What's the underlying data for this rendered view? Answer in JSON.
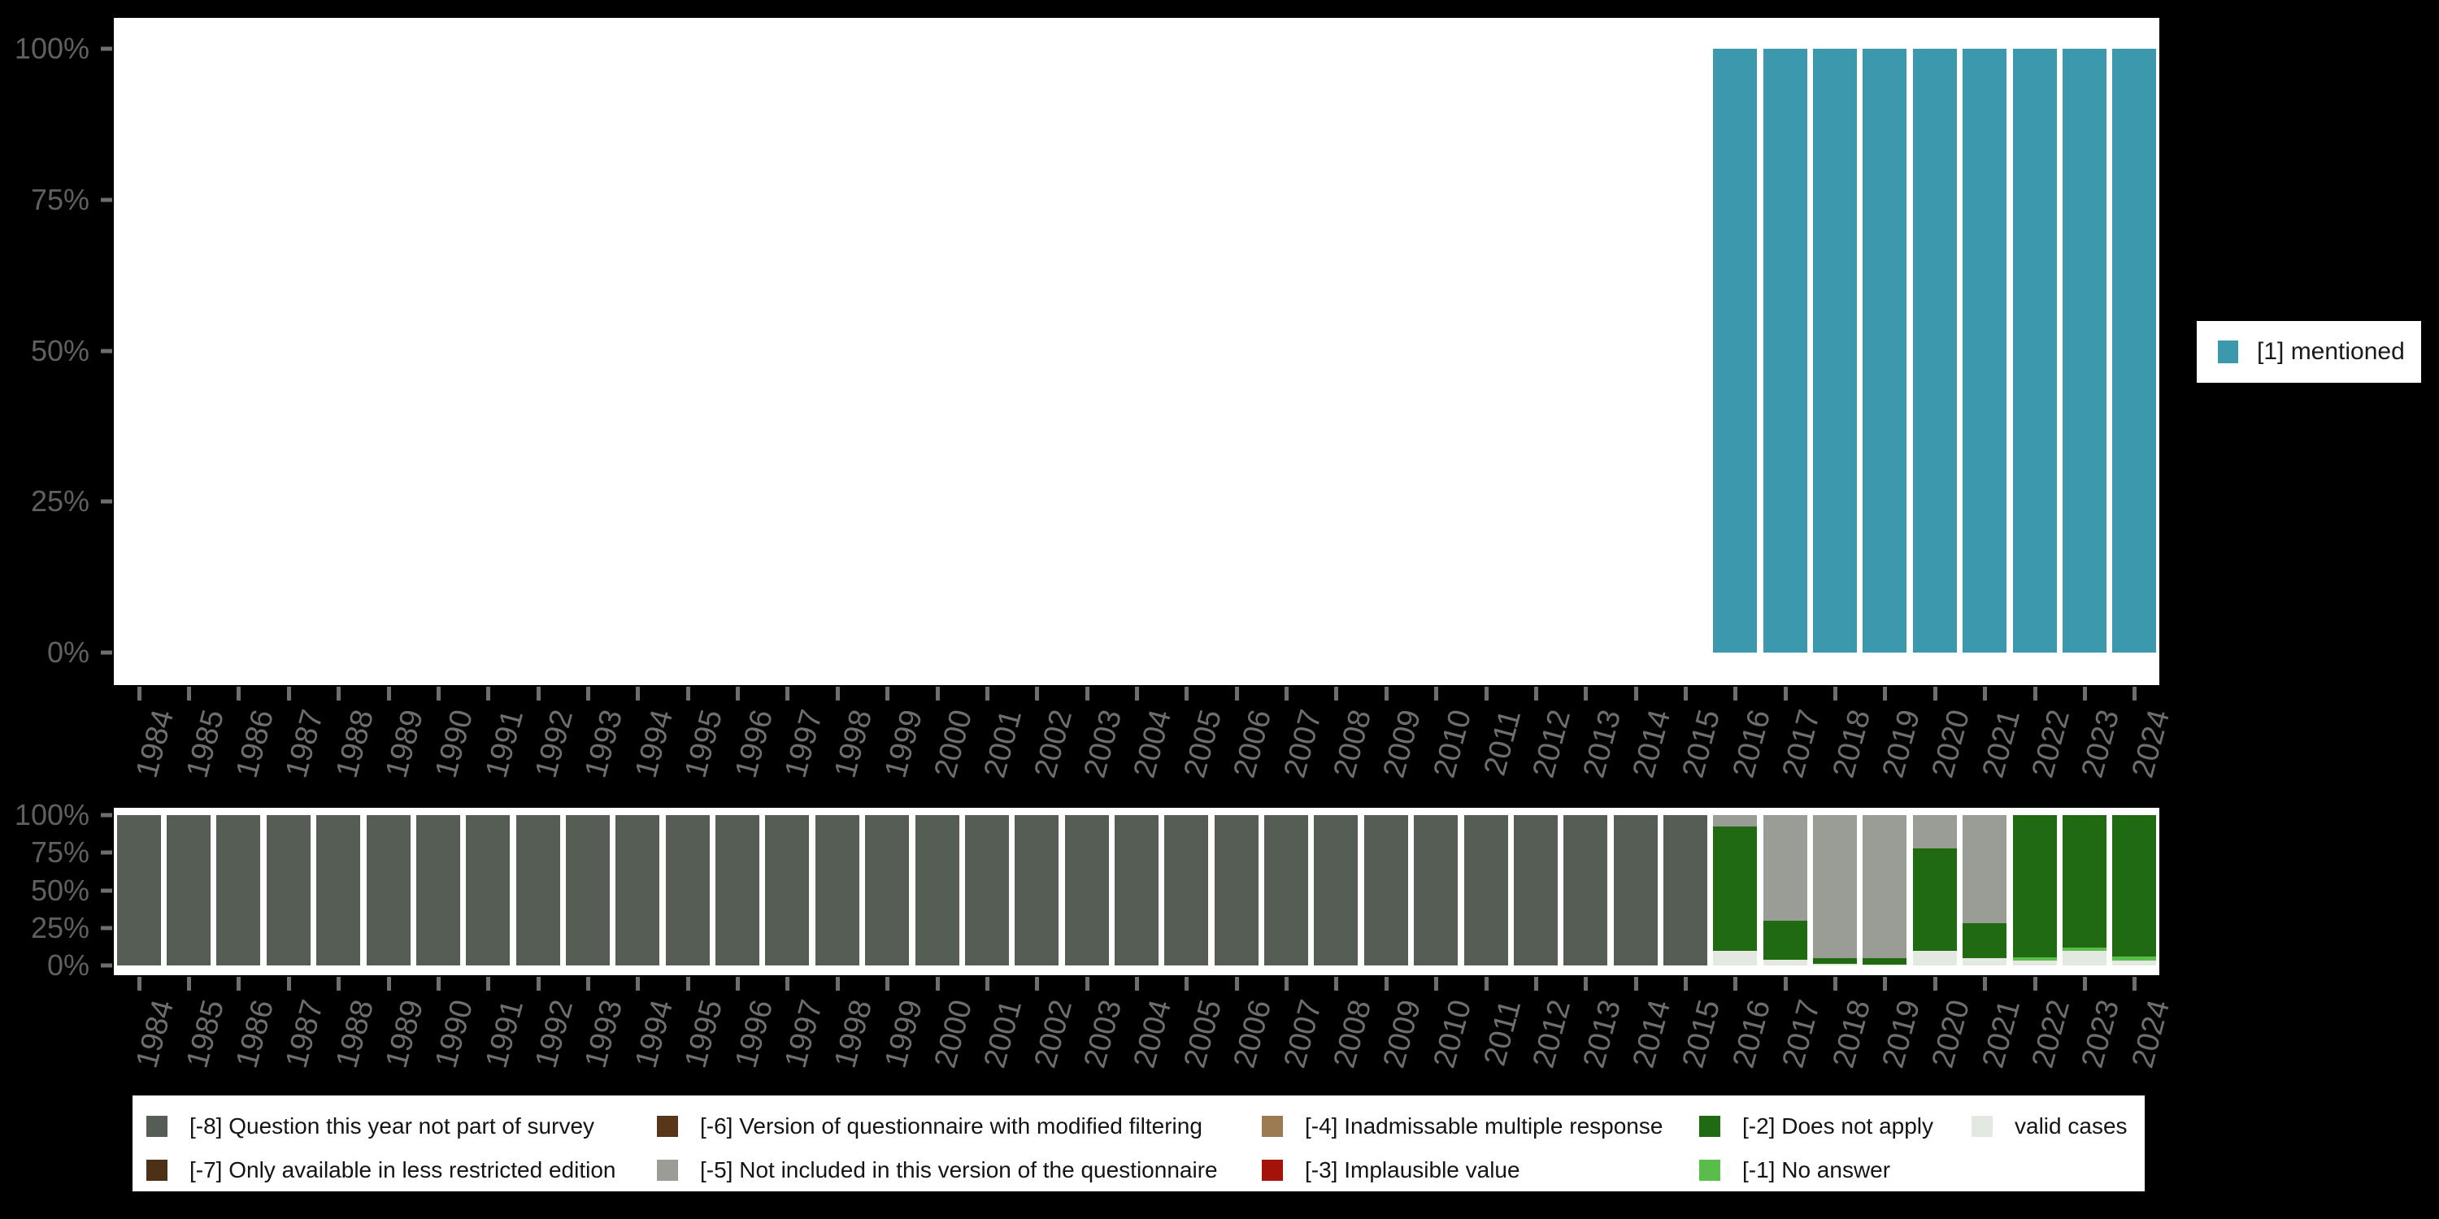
{
  "colors": {
    "background": "#000000",
    "plot_bg": "#ffffff",
    "axis_text": "#6e6e6e",
    "y_axis_text": "#606060",
    "tick": "#6e6e6e",
    "legend_text": "#141414",
    "mentioned": "#3b98ad",
    "-8": "#565d54",
    "-7": "#4c3117",
    "-6": "#57361a",
    "-5": "#9a9d96",
    "-4": "#9d7b52",
    "-3": "#a31309",
    "-2": "#206b12",
    "-1": "#58bd49",
    "valid": "#e3e8e1"
  },
  "y_tick_labels_top_to_bottom": [
    "100%",
    "75%",
    "50%",
    "25%",
    "0%"
  ],
  "chart_data": [
    {
      "id": "values-panel",
      "type": "bar",
      "stacked": true,
      "title": "",
      "xlabel": "",
      "ylabel": "",
      "ylim": [
        0,
        100
      ],
      "grid": false,
      "legend_position": "right",
      "categories": [
        1984,
        1985,
        1986,
        1987,
        1988,
        1989,
        1990,
        1991,
        1992,
        1993,
        1994,
        1995,
        1996,
        1997,
        1998,
        1999,
        2000,
        2001,
        2002,
        2003,
        2004,
        2005,
        2006,
        2007,
        2008,
        2009,
        2010,
        2011,
        2012,
        2013,
        2014,
        2015,
        2016,
        2017,
        2018,
        2019,
        2020,
        2021,
        2022,
        2023,
        2024
      ],
      "series": [
        {
          "name": "[1] mentioned",
          "color_key": "mentioned",
          "values": [
            0,
            0,
            0,
            0,
            0,
            0,
            0,
            0,
            0,
            0,
            0,
            0,
            0,
            0,
            0,
            0,
            0,
            0,
            0,
            0,
            0,
            0,
            0,
            0,
            0,
            0,
            0,
            0,
            0,
            0,
            0,
            0,
            100,
            100,
            100,
            100,
            100,
            100,
            100,
            100,
            100
          ]
        }
      ]
    },
    {
      "id": "missing-values-panel",
      "type": "bar",
      "stacked": true,
      "title": "",
      "xlabel": "",
      "ylabel": "",
      "ylim": [
        0,
        100
      ],
      "grid": false,
      "legend_position": "bottom",
      "categories": [
        1984,
        1985,
        1986,
        1987,
        1988,
        1989,
        1990,
        1991,
        1992,
        1993,
        1994,
        1995,
        1996,
        1997,
        1998,
        1999,
        2000,
        2001,
        2002,
        2003,
        2004,
        2005,
        2006,
        2007,
        2008,
        2009,
        2010,
        2011,
        2012,
        2013,
        2014,
        2015,
        2016,
        2017,
        2018,
        2019,
        2020,
        2021,
        2022,
        2023,
        2024
      ],
      "stack_order_bottom_to_top": [
        "valid",
        "-1",
        "-2",
        "-5",
        "-8"
      ],
      "series": [
        {
          "name": "[-8] Question this year not part of survey",
          "color_key": "-8",
          "values": [
            100,
            100,
            100,
            100,
            100,
            100,
            100,
            100,
            100,
            100,
            100,
            100,
            100,
            100,
            100,
            100,
            100,
            100,
            100,
            100,
            100,
            100,
            100,
            100,
            100,
            100,
            100,
            100,
            100,
            100,
            100,
            100,
            0,
            0,
            0,
            0,
            0,
            0,
            0,
            0,
            0
          ]
        },
        {
          "name": "[-5] Not included in this version of the questionnaire",
          "color_key": "-5",
          "values": [
            0,
            0,
            0,
            0,
            0,
            0,
            0,
            0,
            0,
            0,
            0,
            0,
            0,
            0,
            0,
            0,
            0,
            0,
            0,
            0,
            0,
            0,
            0,
            0,
            0,
            0,
            0,
            0,
            0,
            0,
            0,
            0,
            7.5,
            70,
            95,
            95,
            22,
            72,
            0,
            0,
            0
          ]
        },
        {
          "name": "[-2] Does not apply",
          "color_key": "-2",
          "values": [
            0,
            0,
            0,
            0,
            0,
            0,
            0,
            0,
            0,
            0,
            0,
            0,
            0,
            0,
            0,
            0,
            0,
            0,
            0,
            0,
            0,
            0,
            0,
            0,
            0,
            0,
            0,
            0,
            0,
            0,
            0,
            0,
            82.5,
            26,
            4,
            4.5,
            68,
            23,
            94.5,
            88,
            94
          ]
        },
        {
          "name": "[-1] No answer",
          "color_key": "-1",
          "values": [
            0,
            0,
            0,
            0,
            0,
            0,
            0,
            0,
            0,
            0,
            0,
            0,
            0,
            0,
            0,
            0,
            0,
            0,
            0,
            0,
            0,
            0,
            0,
            0,
            0,
            0,
            0,
            0,
            0,
            0,
            0,
            0,
            0,
            0,
            0,
            0,
            0,
            0,
            2.5,
            2,
            3
          ]
        },
        {
          "name": "valid cases",
          "color_key": "valid",
          "values": [
            0,
            0,
            0,
            0,
            0,
            0,
            0,
            0,
            0,
            0,
            0,
            0,
            0,
            0,
            0,
            0,
            0,
            0,
            0,
            0,
            0,
            0,
            0,
            0,
            0,
            0,
            0,
            0,
            0,
            0,
            0,
            0,
            10,
            4,
            1,
            0.5,
            10,
            5,
            3,
            10,
            3
          ]
        }
      ]
    }
  ],
  "legend_top": {
    "items": [
      {
        "label": "[1] mentioned",
        "color_key": "mentioned"
      }
    ]
  },
  "legend_bottom": {
    "items": [
      {
        "label": "[-8] Question this year not part of survey",
        "color_key": "-8",
        "col": 0,
        "row": 0
      },
      {
        "label": "[-7] Only available in less restricted edition",
        "color_key": "-7",
        "col": 0,
        "row": 1
      },
      {
        "label": "[-6] Version of questionnaire with modified filtering",
        "color_key": "-6",
        "col": 1,
        "row": 0
      },
      {
        "label": "[-5] Not included in this version of the questionnaire",
        "color_key": "-5",
        "col": 1,
        "row": 1
      },
      {
        "label": "[-4] Inadmissable multiple response",
        "color_key": "-4",
        "col": 2,
        "row": 0
      },
      {
        "label": "[-3] Implausible value",
        "color_key": "-3",
        "col": 2,
        "row": 1
      },
      {
        "label": "[-2] Does not apply",
        "color_key": "-2",
        "col": 3,
        "row": 0
      },
      {
        "label": "[-1] No answer",
        "color_key": "-1",
        "col": 3,
        "row": 1
      },
      {
        "label": "valid cases",
        "color_key": "valid",
        "col": 4,
        "row": 0
      }
    ]
  }
}
